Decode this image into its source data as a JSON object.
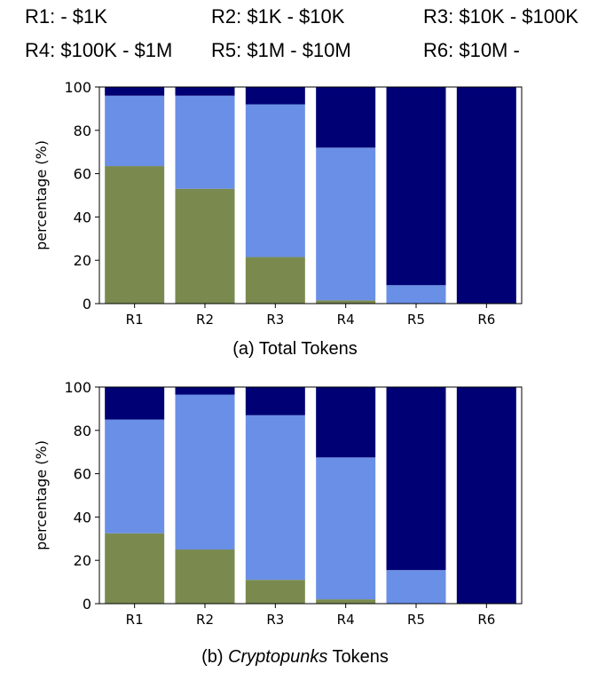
{
  "legend": [
    {
      "label": "R1: - $1K"
    },
    {
      "label": "R2: $1K - $10K"
    },
    {
      "label": "R3: $10K - $100K"
    },
    {
      "label": "R4: $100K - $1M"
    },
    {
      "label": "R5: $1M - $10M"
    },
    {
      "label": "R6: $10M -"
    }
  ],
  "colors": {
    "series1": "#7a8a4e",
    "series2": "#6a8fe6",
    "series3": "#000075"
  },
  "chart_data": [
    {
      "type": "bar",
      "stacked": true,
      "caption_prefix": "(a) ",
      "caption_emph": "",
      "caption_suffix": "Total Tokens",
      "ylabel": "percentage (%)",
      "ylim": [
        0,
        100
      ],
      "yticks": [
        0,
        20,
        40,
        60,
        80,
        100
      ],
      "categories": [
        "R1",
        "R2",
        "R3",
        "R4",
        "R5",
        "R6"
      ],
      "series": [
        {
          "name": "series1",
          "values": [
            63.5,
            53,
            21.5,
            1.5,
            0,
            0
          ]
        },
        {
          "name": "series2",
          "values": [
            32.5,
            43,
            70.5,
            70.5,
            8.5,
            0
          ]
        },
        {
          "name": "series3",
          "values": [
            4,
            4,
            8,
            28,
            91.5,
            100
          ]
        }
      ]
    },
    {
      "type": "bar",
      "stacked": true,
      "caption_prefix": "(b) ",
      "caption_emph": "Cryptopunks",
      "caption_suffix": " Tokens",
      "ylabel": "percentage (%)",
      "ylim": [
        0,
        100
      ],
      "yticks": [
        0,
        20,
        40,
        60,
        80,
        100
      ],
      "categories": [
        "R1",
        "R2",
        "R3",
        "R4",
        "R5",
        "R6"
      ],
      "series": [
        {
          "name": "series1",
          "values": [
            32.5,
            25,
            11,
            2,
            0,
            0
          ]
        },
        {
          "name": "series2",
          "values": [
            52.5,
            71.5,
            76,
            65.5,
            15.5,
            0
          ]
        },
        {
          "name": "series3",
          "values": [
            15,
            3.5,
            13,
            32.5,
            84.5,
            100
          ]
        }
      ]
    }
  ]
}
